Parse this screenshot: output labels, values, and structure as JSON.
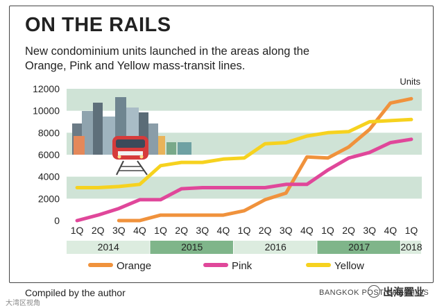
{
  "header": {
    "title": "ON THE RAILS",
    "subtitle": "New condominium units launched in the areas along the Orange, Pink and Yellow mass-transit lines."
  },
  "footer": {
    "credit": "Compiled by the author",
    "source": "BANGKOK POST GRAPHICS",
    "watermark": "出海置业",
    "watermark_small": "大湾区视角"
  },
  "chart_data": {
    "type": "line",
    "title": "ON THE RAILS",
    "ylabel": "Units",
    "xlabel": "",
    "ylim": [
      0,
      12000
    ],
    "yticks": [
      0,
      2000,
      4000,
      6000,
      8000,
      10000,
      12000
    ],
    "yticklabels": [
      "0",
      "2000",
      "4000",
      "6000",
      "8000",
      "10000",
      "12000"
    ],
    "categories": [
      "1Q",
      "2Q",
      "3Q",
      "4Q",
      "1Q",
      "2Q",
      "3Q",
      "4Q",
      "1Q",
      "2Q",
      "3Q",
      "4Q",
      "1Q",
      "2Q",
      "3Q",
      "4Q",
      "1Q"
    ],
    "years": [
      {
        "label": "2014",
        "start": 0,
        "count": 4
      },
      {
        "label": "2015",
        "start": 4,
        "count": 4
      },
      {
        "label": "2016",
        "start": 8,
        "count": 4
      },
      {
        "label": "2017",
        "start": 12,
        "count": 4
      },
      {
        "label": "2018",
        "start": 16,
        "count": 1
      }
    ],
    "series": [
      {
        "name": "Orange",
        "color": "#f0923c",
        "values": [
          null,
          null,
          0,
          0,
          500,
          500,
          500,
          500,
          900,
          1900,
          2500,
          5800,
          5700,
          6700,
          8300,
          10700,
          11100
        ]
      },
      {
        "name": "Pink",
        "color": "#e0479a",
        "values": [
          0,
          500,
          1100,
          1900,
          1900,
          2900,
          3000,
          3000,
          3000,
          3000,
          3300,
          3300,
          4600,
          5700,
          6200,
          7100,
          7400
        ]
      },
      {
        "name": "Yellow",
        "color": "#f6d21f",
        "values": [
          3000,
          3000,
          3100,
          3300,
          5000,
          5300,
          5300,
          5600,
          5700,
          7000,
          7100,
          7700,
          8000,
          8100,
          9000,
          9100,
          9200
        ]
      }
    ],
    "legend": {
      "position": "bottom"
    },
    "colors": {
      "band": "#cfe3d6",
      "year_band_light": "#dcecdf",
      "year_band_dark": "#7fb58a",
      "grid_text": "#222222"
    }
  }
}
